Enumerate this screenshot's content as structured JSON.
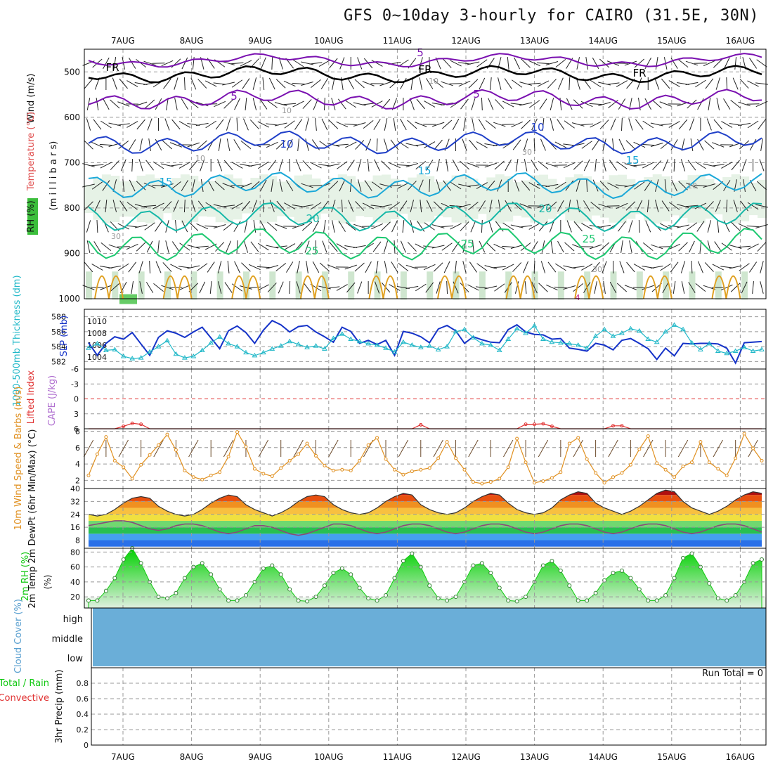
{
  "title": "GFS 0~10day 3-hourly for CAIRO (31.5E, 30N)",
  "run_total_label": "Run Total = 0",
  "colors": {
    "temp_blue": "#1f3fc8",
    "temp_cyan": "#1aa8d8",
    "temp_teal": "#16b8a8",
    "temp_green": "#1cc870",
    "temp_orange": "#e0a020",
    "temp_purple": "#7a10b0",
    "fr_line": "#000000",
    "slp": "#1432c8",
    "thickness": "#20b8c8",
    "lifted": "#e03030",
    "wind10m": "#e09020",
    "rh2m": "#10c810",
    "cloud": "#6aaed8",
    "rh_shade": "#e8f4e8"
  },
  "chart_data": [
    {
      "type": "heatmap",
      "panel": "upper-air",
      "ylabel_wind": "Wind (m/s)",
      "ylabel_temp": "Temperature (°C)",
      "ylabel_rh": "RH (%)",
      "ylabel_pressure": "(m i l l i b a r s)",
      "ylim": [
        1000,
        450
      ],
      "yticks": [
        "500",
        "600",
        "700",
        "800",
        "900",
        "1000"
      ],
      "contour_labels": [
        "5",
        "5",
        "5",
        "FR",
        "FR",
        "FR",
        "10",
        "10",
        "15",
        "15",
        "15",
        "20",
        "20",
        "25",
        "25",
        "25",
        "10",
        "10",
        "30",
        "30",
        "10",
        "10",
        "30",
        "4"
      ],
      "temperature_levels": [
        {
          "label": "5",
          "level": 475,
          "color": "purple"
        },
        {
          "label": "FR",
          "level": 505,
          "color": "black"
        },
        {
          "label": "5",
          "level": 560,
          "color": "purple"
        },
        {
          "label": "10",
          "level": 655,
          "color": "blue"
        },
        {
          "label": "15",
          "level": 750,
          "color": "cyan"
        },
        {
          "label": "20",
          "level": 820,
          "color": "teal"
        },
        {
          "label": "25",
          "level": 880,
          "color": "green"
        }
      ]
    },
    {
      "type": "line",
      "panel": "slp-thickness",
      "ylabel_left": "1000-500mb Thickness (dm)",
      "ylabel_right": "SLP (mb)",
      "ylim_left": [
        581,
        589
      ],
      "ylim_right": [
        1002,
        1012
      ],
      "yticks_left": [
        "582",
        "584",
        "586",
        "588"
      ],
      "yticks_right": [
        "1004",
        "1006",
        "1008",
        "1010"
      ],
      "series": [
        {
          "values": [
            1006.4,
            1004.3,
            1006.3,
            1007.4,
            1007.0,
            1008.1,
            1006.2,
            1004.3,
            1007.3,
            1008.4,
            1008.0,
            1007.3,
            1008.2,
            1009.0,
            1007.2,
            1005.4,
            1008.4,
            1009.2,
            1008.1,
            1006.3,
            1008.5,
            1010.1,
            1009.4,
            1008.2,
            1009.1,
            1009.3,
            1008.2,
            1007.4,
            1006.5,
            1009.0,
            1008.3,
            1006.3,
            1006.8,
            1006.1,
            1006.8,
            1004.3,
            1008.3,
            1008.0,
            1007.4,
            1006.4,
            1008.7,
            1009.3,
            1008.4,
            1006.3,
            1007.4,
            1006.9,
            1006.5,
            1006.4,
            1008.6,
            1009.4,
            1008.2,
            1007.8,
            1007.7,
            1007.0,
            1007.1,
            1005.5,
            1005.3,
            1005.0,
            1006.3,
            1006.0,
            1005.2,
            1006.8,
            1007.1,
            1006.3,
            1005.4,
            1003.6,
            1005.5,
            1004.2,
            1006.3,
            1006.2,
            1006.3,
            1006.3,
            1006.2,
            1005.5,
            1003.0,
            1006.4,
            1006.5,
            1006.6
          ]
        },
        {
          "values": [
            583.8,
            584.4,
            583.5,
            583.6,
            582.7,
            582.4,
            582.5,
            583.3,
            584.0,
            584.8,
            583.0,
            582.5,
            582.7,
            583.5,
            584.5,
            585.3,
            584.4,
            584.0,
            583.2,
            582.8,
            583.2,
            583.7,
            584.1,
            584.7,
            584.3,
            583.9,
            584.1,
            583.7,
            585.1,
            585.7,
            585.0,
            584.7,
            584.4,
            584.2,
            583.8,
            583.3,
            584.6,
            584.2,
            583.9,
            584.1,
            583.6,
            584.0,
            586.0,
            586.3,
            585.2,
            584.4,
            584.2,
            583.5,
            585.0,
            586.4,
            585.8,
            586.8,
            585.0,
            584.6,
            584.5,
            584.4,
            584.2,
            583.8,
            585.4,
            586.3,
            585.4,
            585.8,
            586.4,
            586.1,
            585.0,
            584.6,
            586.0,
            586.9,
            586.3,
            584.5,
            583.6,
            584.4,
            583.4,
            583.1,
            583.4,
            583.9,
            583.4,
            583.6
          ]
        }
      ]
    },
    {
      "type": "line",
      "panel": "lifted-cape",
      "ylabel_left": "Lifted Index",
      "ylabel_right": "CAPE (J/kg)",
      "ylim": [
        -6,
        6
      ],
      "yticks": [
        "-6",
        "-3",
        "0",
        "3",
        "6"
      ],
      "series": [
        {
          "values": [
            6.0,
            6.0,
            6.0,
            6.0,
            5.5,
            4.9,
            5.1,
            6.0,
            6.0,
            6.0,
            6.0,
            6.0,
            6.0,
            6.0,
            6.0,
            6.0,
            6.0,
            6.0,
            6.0,
            6.0,
            6.0,
            6.0,
            6.0,
            6.0,
            6.0,
            6.0,
            6.0,
            6.0,
            6.0,
            6.0,
            6.0,
            6.0,
            6.0,
            6.0,
            6.0,
            6.0,
            6.0,
            6.0,
            5.2,
            6.0,
            6.0,
            6.0,
            6.0,
            6.0,
            6.0,
            6.0,
            6.0,
            6.0,
            6.0,
            6.0,
            5.1,
            5.1,
            5.0,
            5.5,
            6.0,
            6.0,
            6.0,
            6.0,
            6.0,
            6.0,
            5.4,
            5.4,
            6.0,
            6.0,
            6.0,
            6.0,
            6.0,
            6.0,
            6.0,
            6.0,
            6.0,
            6.0,
            6.0,
            6.0,
            6.0,
            6.0,
            6.0,
            6.0
          ]
        }
      ]
    },
    {
      "type": "line",
      "panel": "wind10m",
      "ylabel": "10m Wind Speed & Barbs (m/s)",
      "ylim": [
        1,
        8.3
      ],
      "yticks": [
        "2",
        "4",
        "6",
        "8"
      ],
      "series": [
        {
          "values": [
            2.6,
            5.2,
            7.3,
            4.4,
            3.6,
            2.2,
            3.9,
            5.1,
            6.3,
            7.6,
            5.7,
            3.2,
            2.4,
            2.1,
            2.6,
            3.0,
            4.9,
            7.9,
            6.1,
            3.4,
            2.8,
            2.5,
            3.5,
            4.4,
            5.2,
            6.5,
            5.0,
            3.8,
            3.2,
            3.3,
            3.2,
            4.4,
            6.3,
            7.2,
            4.6,
            3.3,
            2.7,
            3.1,
            3.3,
            3.5,
            4.7,
            6.7,
            4.7,
            3.3,
            1.8,
            1.6,
            1.8,
            2.2,
            3.6,
            7.1,
            4.2,
            1.7,
            1.9,
            2.3,
            3.0,
            6.5,
            7.2,
            4.6,
            2.9,
            1.7,
            2.4,
            2.9,
            3.9,
            5.8,
            7.4,
            4.1,
            3.3,
            2.4,
            3.7,
            4.2,
            6.7,
            4.2,
            3.4,
            2.6,
            4.7,
            7.7,
            5.9,
            4.4
          ]
        }
      ]
    },
    {
      "type": "area",
      "panel": "temp-dewpt",
      "ylabel": "2m Temp 2m DewPt (6hr Min/Max) (°C)",
      "ylim": [
        3,
        40
      ],
      "yticks": [
        "8",
        "16",
        "24",
        "32",
        "40"
      ],
      "series": [
        {
          "values": [
            24,
            23,
            24,
            27,
            31,
            34,
            35,
            34,
            29,
            26,
            24,
            23,
            24,
            27,
            31,
            34,
            36,
            35,
            30,
            27,
            25,
            23,
            25,
            28,
            32,
            35,
            36,
            35,
            30,
            27,
            25,
            24,
            25,
            28,
            32,
            35,
            37,
            36,
            30,
            27,
            25,
            24,
            25,
            28,
            32,
            35,
            37,
            36,
            31,
            27,
            25,
            24,
            25,
            28,
            33,
            36,
            38,
            37,
            31,
            28,
            26,
            24,
            26,
            29,
            33,
            37,
            39,
            38,
            32,
            28,
            26,
            24,
            26,
            29,
            33,
            36,
            38,
            37
          ]
        },
        {
          "values": [
            17,
            18,
            19,
            20,
            20,
            19,
            17,
            15,
            14,
            15,
            17,
            18,
            18,
            17,
            15,
            13,
            12,
            13,
            15,
            17,
            17,
            16,
            14,
            12,
            11,
            12,
            14,
            16,
            18,
            18,
            17,
            15,
            13,
            12,
            13,
            15,
            17,
            18,
            18,
            17,
            15,
            13,
            12,
            13,
            15,
            17,
            18,
            18,
            17,
            15,
            13,
            12,
            13,
            15,
            17,
            18,
            18,
            17,
            15,
            13,
            12,
            13,
            15,
            17,
            18,
            18,
            17,
            15,
            13,
            12,
            13,
            15,
            17,
            18,
            18,
            17,
            15,
            13
          ]
        }
      ]
    },
    {
      "type": "area",
      "panel": "rh2m",
      "ylabel": "2m RH (%)",
      "ylim": [
        5,
        85
      ],
      "yticks": [
        "20",
        "40",
        "60",
        "80"
      ],
      "series": [
        {
          "values": [
            15,
            15,
            28,
            45,
            70,
            85,
            65,
            40,
            20,
            18,
            25,
            45,
            60,
            65,
            50,
            30,
            15,
            15,
            22,
            40,
            58,
            62,
            50,
            30,
            15,
            14,
            20,
            35,
            52,
            58,
            50,
            32,
            18,
            15,
            22,
            45,
            68,
            78,
            60,
            35,
            18,
            15,
            20,
            40,
            62,
            65,
            52,
            32,
            15,
            14,
            20,
            40,
            62,
            68,
            55,
            35,
            15,
            15,
            25,
            42,
            52,
            55,
            45,
            30,
            15,
            15,
            22,
            45,
            72,
            78,
            60,
            38,
            18,
            15,
            22,
            40,
            65,
            70
          ]
        }
      ]
    },
    {
      "type": "area",
      "panel": "cloud-cover",
      "ylabel": "Cloud Cover (%)",
      "ytick_labels": [
        "high",
        "middle",
        "low"
      ]
    },
    {
      "type": "bar",
      "panel": "precip",
      "ylabel": "3hr Precip (mm)",
      "ylabel_total": "Total / Rain",
      "ylabel_conv": "Convective",
      "ylim": [
        0,
        1
      ],
      "yticks": [
        "0",
        "0.2",
        "0.4",
        "0.6",
        "0.8"
      ],
      "values": []
    }
  ],
  "x_axis": {
    "categories": [
      "7AUG",
      "8AUG",
      "9AUG",
      "10AUG",
      "11AUG",
      "12AUG",
      "13AUG",
      "14AUG",
      "15AUG",
      "16AUG"
    ]
  }
}
